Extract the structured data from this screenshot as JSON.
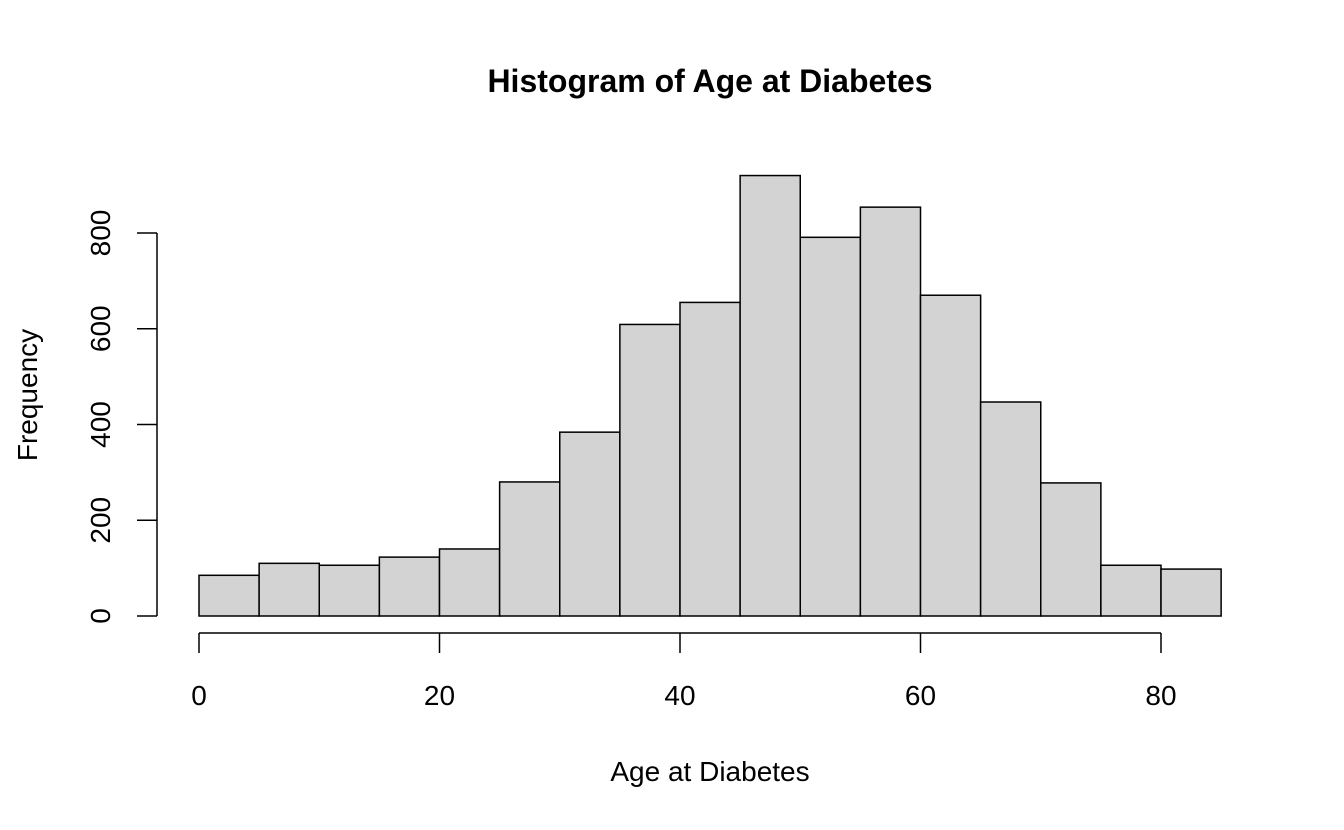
{
  "chart_data": {
    "type": "bar",
    "subtype": "histogram",
    "title": "Histogram of Age at Diabetes",
    "xlabel": "Age at Diabetes",
    "ylabel": "Frequency",
    "bin_edges": [
      0,
      5,
      10,
      15,
      20,
      25,
      30,
      35,
      40,
      45,
      50,
      55,
      60,
      65,
      70,
      75,
      80,
      85
    ],
    "values": [
      85,
      110,
      106,
      123,
      140,
      280,
      384,
      609,
      655,
      920,
      791,
      854,
      670,
      447,
      278,
      106,
      98
    ],
    "xlim": [
      0,
      85
    ],
    "ylim": [
      0,
      920
    ],
    "x_ticks": [
      0,
      20,
      40,
      60,
      80
    ],
    "y_ticks": [
      0,
      200,
      400,
      600,
      800
    ],
    "bar_fill": "#d3d3d3",
    "bar_stroke": "#000000",
    "grid": false,
    "legend": "none"
  }
}
